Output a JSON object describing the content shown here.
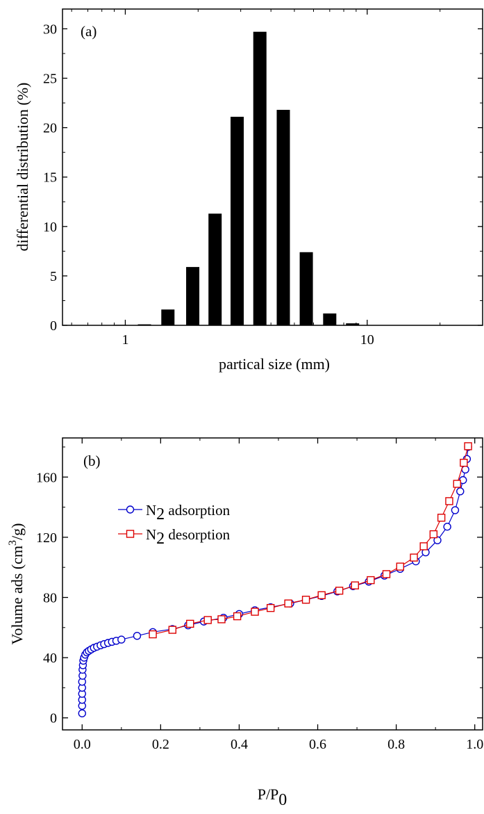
{
  "chart_data": [
    {
      "id": "a",
      "type": "bar",
      "panel_label": "(a)",
      "xlabel": "partical size (mm)",
      "ylabel": "differential distribution (%)",
      "xscale": "log",
      "xlim": [
        0.55,
        30
      ],
      "ylim": [
        0,
        32
      ],
      "x_ticks": [
        {
          "value": 1,
          "label": "1"
        },
        {
          "value": 10,
          "label": "10"
        }
      ],
      "y_ticks": [
        0,
        5,
        10,
        15,
        20,
        25,
        30
      ],
      "bar_color": "#000000",
      "bars": [
        {
          "x": 0.6,
          "value": 0.0
        },
        {
          "x": 0.75,
          "value": 0.0
        },
        {
          "x": 0.95,
          "value": 0.05
        },
        {
          "x": 1.2,
          "value": 0.1
        },
        {
          "x": 1.5,
          "value": 1.6
        },
        {
          "x": 1.9,
          "value": 5.9
        },
        {
          "x": 2.35,
          "value": 11.3
        },
        {
          "x": 2.9,
          "value": 21.1
        },
        {
          "x": 3.6,
          "value": 29.7
        },
        {
          "x": 4.5,
          "value": 21.8
        },
        {
          "x": 5.6,
          "value": 7.4
        },
        {
          "x": 7.0,
          "value": 1.2
        },
        {
          "x": 8.7,
          "value": 0.2
        },
        {
          "x": 10.8,
          "value": 0.0
        }
      ]
    },
    {
      "id": "b",
      "type": "line",
      "panel_label": "(b)",
      "xlabel": "P/P",
      "xlabel_sub": "0",
      "ylabel": "Volume ads (cm",
      "ylabel_sup": "3",
      "ylabel_tail": "/g)",
      "xlim": [
        -0.05,
        1.02
      ],
      "ylim": [
        -8,
        186
      ],
      "x_ticks": [
        "0.0",
        "0.2",
        "0.4",
        "0.6",
        "0.8",
        "1.0"
      ],
      "y_ticks": [
        "0",
        "40",
        "80",
        "120",
        "160"
      ],
      "legend": [
        {
          "symbol": "N",
          "sub": "2",
          "text": " adsorption"
        },
        {
          "symbol": "N",
          "sub": "2",
          "text": " desorption"
        }
      ],
      "series": [
        {
          "name": "N2 adsorption",
          "color": "#0000cc",
          "marker": "circle",
          "points": [
            [
              0.0,
              3
            ],
            [
              0.0,
              8
            ],
            [
              0.0,
              12
            ],
            [
              0.0,
              16
            ],
            [
              0.0,
              20
            ],
            [
              0.0,
              24
            ],
            [
              0.001,
              28
            ],
            [
              0.001,
              32
            ],
            [
              0.002,
              35
            ],
            [
              0.003,
              38
            ],
            [
              0.005,
              40
            ],
            [
              0.008,
              42
            ],
            [
              0.012,
              43.5
            ],
            [
              0.017,
              44.5
            ],
            [
              0.023,
              45.5
            ],
            [
              0.03,
              46.5
            ],
            [
              0.038,
              47.3
            ],
            [
              0.047,
              48.2
            ],
            [
              0.056,
              49
            ],
            [
              0.066,
              49.8
            ],
            [
              0.076,
              50.5
            ],
            [
              0.087,
              51.2
            ],
            [
              0.1,
              52
            ],
            [
              0.14,
              54.5
            ],
            [
              0.18,
              57
            ],
            [
              0.23,
              59
            ],
            [
              0.27,
              61.5
            ],
            [
              0.31,
              64
            ],
            [
              0.36,
              66.5
            ],
            [
              0.4,
              69
            ],
            [
              0.44,
              71.5
            ],
            [
              0.48,
              73.5
            ],
            [
              0.53,
              76
            ],
            [
              0.57,
              78.5
            ],
            [
              0.61,
              81
            ],
            [
              0.65,
              84
            ],
            [
              0.69,
              87.5
            ],
            [
              0.73,
              90.5
            ],
            [
              0.77,
              94.5
            ],
            [
              0.81,
              99
            ],
            [
              0.85,
              104
            ],
            [
              0.875,
              110
            ],
            [
              0.905,
              118
            ],
            [
              0.93,
              127
            ],
            [
              0.95,
              138
            ],
            [
              0.963,
              150.5
            ],
            [
              0.97,
              158
            ],
            [
              0.976,
              165
            ],
            [
              0.98,
              172
            ],
            [
              0.983,
              180
            ]
          ]
        },
        {
          "name": "N2 desorption",
          "color": "#dd0000",
          "marker": "square",
          "points": [
            [
              0.983,
              180.5
            ],
            [
              0.972,
              169.5
            ],
            [
              0.955,
              155.5
            ],
            [
              0.935,
              144
            ],
            [
              0.915,
              133
            ],
            [
              0.895,
              122
            ],
            [
              0.87,
              114
            ],
            [
              0.845,
              106.5
            ],
            [
              0.81,
              100.5
            ],
            [
              0.775,
              95.5
            ],
            [
              0.735,
              91.5
            ],
            [
              0.695,
              88
            ],
            [
              0.655,
              84.5
            ],
            [
              0.61,
              81.5
            ],
            [
              0.57,
              78.5
            ],
            [
              0.525,
              76
            ],
            [
              0.48,
              73
            ],
            [
              0.44,
              70.5
            ],
            [
              0.395,
              67.5
            ],
            [
              0.355,
              65.5
            ],
            [
              0.32,
              65
            ],
            [
              0.275,
              62.5
            ],
            [
              0.23,
              58.5
            ],
            [
              0.18,
              55.5
            ]
          ]
        }
      ]
    }
  ]
}
